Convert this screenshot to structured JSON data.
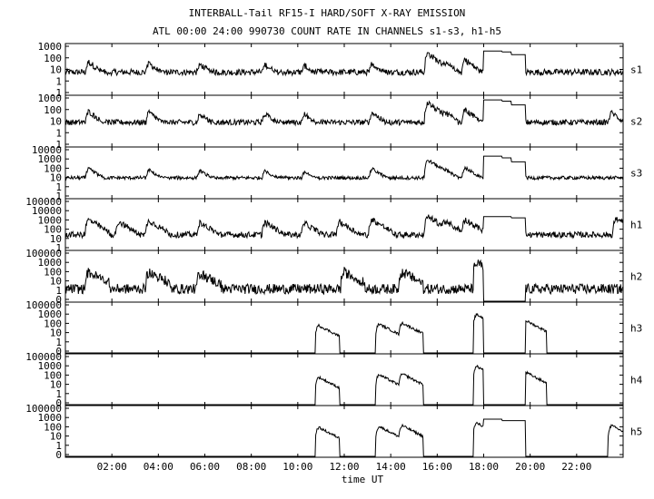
{
  "title_line1": "INTERBALL-Tail RF15-I HARD/SOFT X-RAY EMISSION",
  "title_line2": "ATL 00:00 24:00 990730  COUNT RATE IN CHANNELS s1-s3, h1-h5",
  "chart_data": {
    "type": "line",
    "xlabel": "time UT",
    "x_unit": "hours",
    "xlim": [
      0,
      24
    ],
    "x_tick_labels": [
      "02:00",
      "04:00",
      "06:00",
      "08:00",
      "10:00",
      "12:00",
      "14:00",
      "16:00",
      "18:00",
      "20:00",
      "22:00"
    ],
    "x_tick_values": [
      2,
      4,
      6,
      8,
      10,
      12,
      14,
      16,
      18,
      20,
      22
    ],
    "y_scale": "log",
    "grid": false,
    "panels": [
      {
        "name": "s1",
        "ylim": [
          0.1,
          1000
        ],
        "y_tick_labels": [
          "1000",
          "100",
          "10",
          "1",
          ".1"
        ],
        "baseline": 6,
        "noise": 0.5,
        "gap": [
          18.0,
          19.8
        ],
        "events": [
          [
            1.0,
            40
          ],
          [
            3.6,
            30
          ],
          [
            5.8,
            25
          ],
          [
            8.6,
            25
          ],
          [
            10.3,
            20
          ],
          [
            13.2,
            30
          ],
          [
            15.6,
            200
          ],
          [
            16.3,
            40
          ],
          [
            17.2,
            60
          ]
        ],
        "plateau": [
          [
            18.0,
            300
          ],
          [
            18.8,
            250
          ],
          [
            19.2,
            150
          ],
          [
            19.8,
            8
          ]
        ]
      },
      {
        "name": "s2",
        "ylim": [
          0.1,
          1000
        ],
        "y_tick_labels": [
          "1000",
          "100",
          "10",
          "1",
          ".1"
        ],
        "baseline": 8,
        "noise": 0.45,
        "gap": [
          18.0,
          19.8
        ],
        "events": [
          [
            1.0,
            60
          ],
          [
            3.6,
            50
          ],
          [
            5.8,
            40
          ],
          [
            8.6,
            40
          ],
          [
            10.3,
            35
          ],
          [
            13.2,
            50
          ],
          [
            15.6,
            300
          ],
          [
            16.3,
            60
          ],
          [
            17.2,
            80
          ],
          [
            23.5,
            50
          ]
        ],
        "plateau": [
          [
            18.0,
            500
          ],
          [
            18.8,
            400
          ],
          [
            19.2,
            200
          ],
          [
            19.8,
            10
          ]
        ]
      },
      {
        "name": "s3",
        "ylim": [
          0.1,
          10000
        ],
        "y_tick_labels": [
          "10000",
          "1000",
          "100",
          "10",
          "1",
          ".1"
        ],
        "baseline": 10,
        "noise": 0.35,
        "gap": [
          18.0,
          19.8
        ],
        "events": [
          [
            1.0,
            80
          ],
          [
            3.6,
            60
          ],
          [
            5.8,
            50
          ],
          [
            8.6,
            50
          ],
          [
            10.3,
            40
          ],
          [
            13.2,
            80
          ],
          [
            15.6,
            600
          ],
          [
            16.3,
            80
          ],
          [
            17.2,
            100
          ]
        ],
        "plateau": [
          [
            18.0,
            1500
          ],
          [
            18.8,
            1000
          ],
          [
            19.2,
            400
          ],
          [
            19.8,
            15
          ]
        ]
      },
      {
        "name": "h1",
        "ylim": [
          1,
          100000
        ],
        "y_tick_labels": [
          "100000",
          "10000",
          "1000",
          "100",
          "10",
          "1"
        ],
        "baseline": 30,
        "noise": 0.6,
        "gap": [
          18.0,
          19.8
        ],
        "events": [
          [
            1.0,
            1000
          ],
          [
            2.3,
            600
          ],
          [
            3.6,
            800
          ],
          [
            5.8,
            500
          ],
          [
            8.6,
            500
          ],
          [
            10.3,
            400
          ],
          [
            11.8,
            600
          ],
          [
            13.2,
            1000
          ],
          [
            15.6,
            2000
          ],
          [
            16.3,
            800
          ],
          [
            17.2,
            1000
          ],
          [
            23.7,
            1200
          ]
        ],
        "plateau": [
          [
            18.0,
            2000
          ],
          [
            19.2,
            1500
          ],
          [
            19.8,
            100
          ]
        ]
      },
      {
        "name": "h2",
        "ylim": [
          0.1,
          100000
        ],
        "y_tick_labels": [
          "100000",
          "1000",
          "100",
          "10",
          "1",
          "0"
        ],
        "baseline": 3,
        "noise": 1.2,
        "gap": [
          18.0,
          19.8
        ],
        "events": [
          [
            1.0,
            300
          ],
          [
            3.6,
            300
          ],
          [
            5.8,
            200
          ],
          [
            12.0,
            300
          ],
          [
            14.5,
            300
          ],
          [
            17.7,
            4000
          ]
        ],
        "plateau": []
      },
      {
        "name": "h3",
        "ylim": [
          0.1,
          100000
        ],
        "y_tick_labels": [
          "100000",
          "1000",
          "100",
          "10",
          "1",
          "0"
        ],
        "baseline": 0.1,
        "noise": 0,
        "gap": [
          18.0,
          19.8
        ],
        "events": [
          [
            10.9,
            200
          ],
          [
            13.5,
            300
          ],
          [
            14.5,
            400
          ],
          [
            17.7,
            4000
          ],
          [
            19.8,
            800
          ]
        ],
        "plateau": []
      },
      {
        "name": "h4",
        "ylim": [
          0.1,
          100000
        ],
        "y_tick_labels": [
          "100000",
          "1000",
          "100",
          "10",
          "1",
          "0"
        ],
        "baseline": 0.1,
        "noise": 0,
        "gap": [
          18.0,
          19.8
        ],
        "events": [
          [
            10.9,
            200
          ],
          [
            13.5,
            400
          ],
          [
            14.5,
            500
          ],
          [
            17.7,
            4000
          ],
          [
            19.8,
            800
          ]
        ],
        "plateau": []
      },
      {
        "name": "h5",
        "ylim": [
          0.1,
          100000
        ],
        "y_tick_labels": [
          "100000",
          "1000",
          "100",
          "10",
          "1",
          "0"
        ],
        "baseline": 0.1,
        "noise": 0,
        "gap": [
          18.0,
          19.8
        ],
        "events": [
          [
            10.9,
            300
          ],
          [
            13.5,
            400
          ],
          [
            14.5,
            500
          ],
          [
            17.7,
            1000
          ],
          [
            23.5,
            500
          ]
        ],
        "plateau": [
          [
            18.0,
            3000
          ],
          [
            18.8,
            2000
          ],
          [
            19.8,
            0.1
          ]
        ]
      }
    ]
  }
}
